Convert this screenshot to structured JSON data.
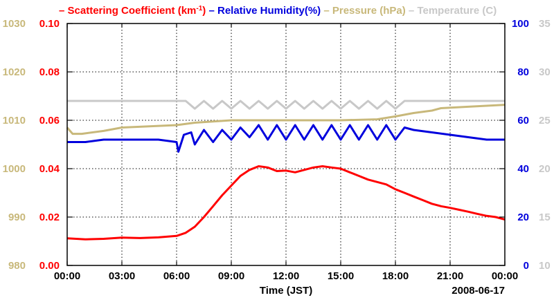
{
  "chart_data": {
    "type": "line",
    "legend": [
      {
        "name": "Scattering Coefficient (km",
        "sup": "-1",
        "close": ")",
        "color": "#ff0000"
      },
      {
        "name": "Relative Humidity(%)",
        "color": "#0000dd"
      },
      {
        "name": "Pressure (hPa)",
        "color": "#c8b87a"
      },
      {
        "name": "Temperature (C)",
        "color": "#c8c8c8"
      }
    ],
    "xlabel": "Time (JST)",
    "date_label": "2008-06-17",
    "x_ticks": [
      "00:00",
      "03:00",
      "06:00",
      "09:00",
      "12:00",
      "15:00",
      "18:00",
      "21:00",
      "00:00"
    ],
    "xlim_hours": [
      0,
      24
    ],
    "axes": {
      "pressure": {
        "color": "#c8b87a",
        "range": [
          980,
          1030
        ],
        "ticks": [
          "980",
          "990",
          "1000",
          "1010",
          "1020",
          "1030"
        ]
      },
      "scattering": {
        "color": "#ff0000",
        "range": [
          0,
          0.1
        ],
        "ticks": [
          "0.00",
          "0.02",
          "0.04",
          "0.06",
          "0.08",
          "0.10"
        ]
      },
      "humidity": {
        "color": "#0000dd",
        "range": [
          0,
          100
        ],
        "ticks": [
          "0",
          "20",
          "40",
          "60",
          "80",
          "100"
        ]
      },
      "temperature": {
        "color": "#c8c8c8",
        "range": [
          10,
          35
        ],
        "ticks": [
          "10",
          "15",
          "20",
          "25",
          "30",
          "35"
        ]
      }
    },
    "series": [
      {
        "name": "Scattering Coefficient",
        "axis": "scattering",
        "color": "#ff0000",
        "x": [
          0,
          1,
          2,
          3,
          4,
          5,
          6,
          6.5,
          7,
          7.5,
          8,
          8.5,
          9,
          9.5,
          10,
          10.5,
          11,
          11.5,
          12,
          12.5,
          13,
          13.5,
          14,
          14.5,
          15,
          15.5,
          16,
          16.5,
          17,
          17.5,
          18,
          18.5,
          19,
          19.5,
          20,
          20.5,
          21,
          21.5,
          22,
          22.5,
          23,
          23.5,
          24
        ],
        "values": [
          0.0112,
          0.0108,
          0.011,
          0.0115,
          0.0113,
          0.0116,
          0.0122,
          0.0135,
          0.016,
          0.02,
          0.0245,
          0.029,
          0.033,
          0.037,
          0.0395,
          0.041,
          0.0405,
          0.039,
          0.0392,
          0.0385,
          0.0395,
          0.0405,
          0.041,
          0.0405,
          0.04,
          0.0385,
          0.037,
          0.0355,
          0.0345,
          0.0335,
          0.0315,
          0.03,
          0.0285,
          0.027,
          0.0255,
          0.0245,
          0.0238,
          0.023,
          0.0222,
          0.0213,
          0.0205,
          0.02,
          0.019
        ]
      },
      {
        "name": "Relative Humidity",
        "axis": "humidity",
        "color": "#0000dd",
        "x": [
          0,
          1,
          2,
          3,
          4,
          5,
          6,
          6.1,
          6.4,
          6.8,
          7,
          7.5,
          8,
          8.5,
          9,
          9.5,
          10,
          10.5,
          11,
          11.5,
          12,
          12.5,
          13,
          13.5,
          14,
          14.5,
          15,
          15.5,
          16,
          16.5,
          17,
          17.5,
          18,
          18.5,
          19,
          20,
          21,
          22,
          23,
          24
        ],
        "values": [
          51,
          51,
          52,
          52,
          52,
          52,
          51,
          47,
          54,
          55,
          50,
          56,
          51,
          56,
          52,
          57,
          53,
          58,
          52,
          58,
          52,
          58,
          52,
          58,
          52,
          58,
          52,
          58,
          52,
          58,
          52,
          58,
          52,
          57,
          56,
          55,
          54,
          53,
          52,
          52
        ]
      },
      {
        "name": "Pressure",
        "axis": "pressure",
        "color": "#c8b87a",
        "x": [
          0,
          0.3,
          0.8,
          2,
          3,
          6,
          7,
          9,
          12,
          15,
          17,
          18,
          19,
          20,
          20.5,
          22,
          23,
          24
        ],
        "values": [
          1008.5,
          1007.2,
          1007.2,
          1007.8,
          1008.5,
          1009.0,
          1009.5,
          1010.0,
          1010.0,
          1010.0,
          1010.2,
          1010.8,
          1011.5,
          1012.0,
          1012.5,
          1012.8,
          1013.0,
          1013.2
        ]
      },
      {
        "name": "Temperature",
        "axis": "temperature",
        "color": "#c8c8c8",
        "x": [
          0,
          6,
          6.5,
          7,
          7.5,
          8,
          8.5,
          9,
          9.5,
          10,
          10.5,
          11,
          11.5,
          12,
          12.5,
          13,
          13.5,
          14,
          14.5,
          15,
          15.5,
          16,
          16.5,
          17,
          17.5,
          18,
          18.5,
          19,
          20,
          21,
          22,
          23,
          24
        ],
        "values": [
          27.0,
          27.0,
          27.0,
          26.2,
          27.0,
          26.2,
          27.0,
          26.2,
          27.0,
          26.2,
          27.0,
          26.2,
          27.0,
          26.2,
          27.0,
          26.2,
          27.0,
          26.2,
          27.0,
          26.2,
          27.0,
          26.2,
          27.0,
          26.2,
          27.0,
          26.2,
          27.0,
          27.0,
          27.0,
          27.0,
          27.0,
          27.0,
          27.0
        ]
      }
    ]
  }
}
